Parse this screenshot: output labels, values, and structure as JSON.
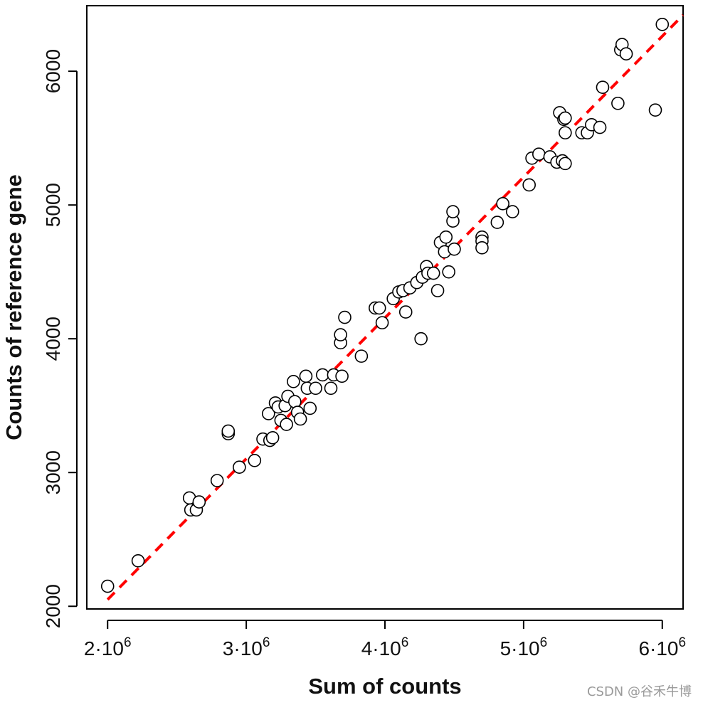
{
  "chart_data": {
    "type": "scatter",
    "title": "",
    "xlabel": "Sum of counts",
    "ylabel": "Counts of reference gene",
    "xlim": [
      1850000,
      6150000
    ],
    "ylim": [
      1980000,
      6490000
    ],
    "ylim_units": [
      1980,
      6490
    ],
    "x_ticks": [
      {
        "value": 2000000,
        "base": "2·10",
        "exp": "6"
      },
      {
        "value": 3000000,
        "base": "3·10",
        "exp": "6"
      },
      {
        "value": 4000000,
        "base": "4·10",
        "exp": "6"
      },
      {
        "value": 5000000,
        "base": "5·10",
        "exp": "6"
      },
      {
        "value": 6000000,
        "base": "6·10",
        "exp": "6"
      }
    ],
    "y_ticks": [
      {
        "value": 2000,
        "label": "2000"
      },
      {
        "value": 3000,
        "label": "3000"
      },
      {
        "value": 4000,
        "label": "4000"
      },
      {
        "value": 5000,
        "label": "5000"
      },
      {
        "value": 6000,
        "label": "6000"
      }
    ],
    "fit_line": {
      "style": "dashed",
      "color": "#ff0000",
      "from": [
        2000000,
        2050
      ],
      "to": [
        6150000,
        6420
      ]
    },
    "grid": false,
    "legend": "none",
    "marker": {
      "shape": "open-circle",
      "stroke": "#000000",
      "fill": "#ffffff"
    },
    "points": [
      [
        2000000,
        2150
      ],
      [
        2220000,
        2340
      ],
      [
        2590000,
        2810
      ],
      [
        2600000,
        2720
      ],
      [
        2640000,
        2720
      ],
      [
        2660000,
        2780
      ],
      [
        2790000,
        2940
      ],
      [
        2870000,
        3290
      ],
      [
        2870000,
        3310
      ],
      [
        2950000,
        3040
      ],
      [
        3060000,
        3090
      ],
      [
        3120000,
        3250
      ],
      [
        3160000,
        3440
      ],
      [
        3170000,
        3240
      ],
      [
        3190000,
        3260
      ],
      [
        3210000,
        3520
      ],
      [
        3230000,
        3490
      ],
      [
        3250000,
        3390
      ],
      [
        3280000,
        3500
      ],
      [
        3290000,
        3360
      ],
      [
        3300000,
        3570
      ],
      [
        3340000,
        3680
      ],
      [
        3350000,
        3530
      ],
      [
        3370000,
        3450
      ],
      [
        3390000,
        3400
      ],
      [
        3430000,
        3720
      ],
      [
        3440000,
        3630
      ],
      [
        3460000,
        3480
      ],
      [
        3500000,
        3630
      ],
      [
        3550000,
        3730
      ],
      [
        3610000,
        3630
      ],
      [
        3630000,
        3730
      ],
      [
        3680000,
        3970
      ],
      [
        3680000,
        4030
      ],
      [
        3690000,
        3720
      ],
      [
        3710000,
        4160
      ],
      [
        3830000,
        3870
      ],
      [
        3930000,
        4230
      ],
      [
        3960000,
        4230
      ],
      [
        3980000,
        4120
      ],
      [
        4060000,
        4300
      ],
      [
        4100000,
        4350
      ],
      [
        4130000,
        4360
      ],
      [
        4150000,
        4200
      ],
      [
        4180000,
        4380
      ],
      [
        4230000,
        4420
      ],
      [
        4260000,
        4000
      ],
      [
        4270000,
        4460
      ],
      [
        4300000,
        4540
      ],
      [
        4310000,
        4490
      ],
      [
        4350000,
        4490
      ],
      [
        4380000,
        4360
      ],
      [
        4400000,
        4720
      ],
      [
        4430000,
        4650
      ],
      [
        4440000,
        4760
      ],
      [
        4460000,
        4500
      ],
      [
        4490000,
        4880
      ],
      [
        4490000,
        4950
      ],
      [
        4500000,
        4670
      ],
      [
        4700000,
        4760
      ],
      [
        4700000,
        4730
      ],
      [
        4700000,
        4680
      ],
      [
        4810000,
        4870
      ],
      [
        4850000,
        5010
      ],
      [
        4920000,
        4950
      ],
      [
        5040000,
        5150
      ],
      [
        5060000,
        5350
      ],
      [
        5110000,
        5380
      ],
      [
        5190000,
        5360
      ],
      [
        5240000,
        5320
      ],
      [
        5260000,
        5690
      ],
      [
        5280000,
        5330
      ],
      [
        5290000,
        5640
      ],
      [
        5300000,
        5310
      ],
      [
        5300000,
        5540
      ],
      [
        5300000,
        5650
      ],
      [
        5420000,
        5540
      ],
      [
        5460000,
        5540
      ],
      [
        5490000,
        5600
      ],
      [
        5550000,
        5580
      ],
      [
        5570000,
        5880
      ],
      [
        5680000,
        5760
      ],
      [
        5700000,
        6160
      ],
      [
        5710000,
        6200
      ],
      [
        5740000,
        6130
      ],
      [
        5950000,
        5710
      ],
      [
        6000000,
        6350
      ]
    ]
  },
  "watermark": "CSDN @谷禾牛博"
}
